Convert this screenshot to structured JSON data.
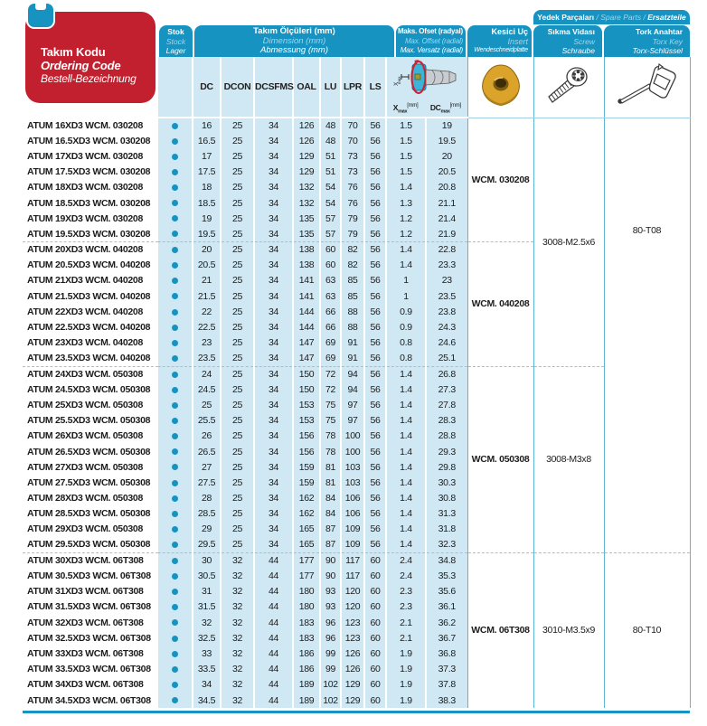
{
  "header": {
    "ordering_code_box": {
      "l1": "Takım Kodu",
      "l2": "Ordering Code",
      "l3": "Bestell-Bezeichnung"
    },
    "spare_parts_band": {
      "l1": "Yedek Parçaları",
      "sep": " / ",
      "l2": "Spare Parts",
      "l3": "Ersatzteile"
    },
    "tabs": {
      "stock": {
        "l1": "Stok",
        "l2": "Stock",
        "l3": "Lager"
      },
      "dimensions": {
        "l1": "Takım Ölçüleri (mm)",
        "l2": "Dimension (mm)",
        "l3": "Abmessung (mm)"
      },
      "offset": {
        "l1": "Maks. Ofset (radyal)",
        "l2": "Max. Offset (radial)",
        "l3": "Max. Versatz (radial)"
      },
      "insert": {
        "l1": "Kesici Uç",
        "l2": "Insert",
        "l3": "Wendeschneidplatte"
      },
      "screw": {
        "l1": "Sıkma Vidası",
        "l2": "Screw",
        "l3": "Schraube"
      },
      "torx": {
        "l1": "Tork Anahtar",
        "l2": "Torx Key",
        "l3": "Torx-Schlüssel"
      }
    },
    "dim_columns": [
      "DC",
      "DCON",
      "DCSFMS",
      "OAL",
      "LU",
      "LPR",
      "LS"
    ],
    "offset_columns": {
      "x": {
        "main": "X",
        "sub": "max",
        "unit": "[mm]"
      },
      "dc": {
        "main": "DC",
        "sub": "max",
        "unit": "[mm]"
      }
    },
    "diagram_label": {
      "main": "X",
      "sub": "max"
    },
    "icons": [
      "clamp-icon",
      "offset-diagram",
      "insert-icon",
      "screw-icon",
      "torx-key-icon",
      "stock-dot"
    ]
  },
  "table": {
    "stock_dot_every_row": true,
    "rows": [
      [
        "ATUM 16XD3 WCM. 030208",
        "16",
        "25",
        "34",
        "126",
        "48",
        "70",
        "56",
        "1.5",
        "19"
      ],
      [
        "ATUM 16.5XD3 WCM. 030208",
        "16.5",
        "25",
        "34",
        "126",
        "48",
        "70",
        "56",
        "1.5",
        "19.5"
      ],
      [
        "ATUM 17XD3 WCM. 030208",
        "17",
        "25",
        "34",
        "129",
        "51",
        "73",
        "56",
        "1.5",
        "20"
      ],
      [
        "ATUM 17.5XD3 WCM. 030208",
        "17.5",
        "25",
        "34",
        "129",
        "51",
        "73",
        "56",
        "1.5",
        "20.5"
      ],
      [
        "ATUM 18XD3 WCM. 030208",
        "18",
        "25",
        "34",
        "132",
        "54",
        "76",
        "56",
        "1.4",
        "20.8"
      ],
      [
        "ATUM 18.5XD3 WCM. 030208",
        "18.5",
        "25",
        "34",
        "132",
        "54",
        "76",
        "56",
        "1.3",
        "21.1"
      ],
      [
        "ATUM 19XD3 WCM. 030208",
        "19",
        "25",
        "34",
        "135",
        "57",
        "79",
        "56",
        "1.2",
        "21.4"
      ],
      [
        "ATUM 19.5XD3 WCM. 030208",
        "19.5",
        "25",
        "34",
        "135",
        "57",
        "79",
        "56",
        "1.2",
        "21.9"
      ],
      [
        "ATUM 20XD3 WCM. 040208",
        "20",
        "25",
        "34",
        "138",
        "60",
        "82",
        "56",
        "1.4",
        "22.8"
      ],
      [
        "ATUM 20.5XD3 WCM. 040208",
        "20.5",
        "25",
        "34",
        "138",
        "60",
        "82",
        "56",
        "1.4",
        "23.3"
      ],
      [
        "ATUM 21XD3 WCM. 040208",
        "21",
        "25",
        "34",
        "141",
        "63",
        "85",
        "56",
        "1",
        "23"
      ],
      [
        "ATUM 21.5XD3 WCM. 040208",
        "21.5",
        "25",
        "34",
        "141",
        "63",
        "85",
        "56",
        "1",
        "23.5"
      ],
      [
        "ATUM 22XD3 WCM. 040208",
        "22",
        "25",
        "34",
        "144",
        "66",
        "88",
        "56",
        "0.9",
        "23.8"
      ],
      [
        "ATUM 22.5XD3 WCM. 040208",
        "22.5",
        "25",
        "34",
        "144",
        "66",
        "88",
        "56",
        "0.9",
        "24.3"
      ],
      [
        "ATUM 23XD3 WCM. 040208",
        "23",
        "25",
        "34",
        "147",
        "69",
        "91",
        "56",
        "0.8",
        "24.6"
      ],
      [
        "ATUM 23.5XD3 WCM. 040208",
        "23.5",
        "25",
        "34",
        "147",
        "69",
        "91",
        "56",
        "0.8",
        "25.1"
      ],
      [
        "ATUM 24XD3 WCM. 050308",
        "24",
        "25",
        "34",
        "150",
        "72",
        "94",
        "56",
        "1.4",
        "26.8"
      ],
      [
        "ATUM 24.5XD3 WCM. 050308",
        "24.5",
        "25",
        "34",
        "150",
        "72",
        "94",
        "56",
        "1.4",
        "27.3"
      ],
      [
        "ATUM 25XD3 WCM. 050308",
        "25",
        "25",
        "34",
        "153",
        "75",
        "97",
        "56",
        "1.4",
        "27.8"
      ],
      [
        "ATUM 25.5XD3 WCM. 050308",
        "25.5",
        "25",
        "34",
        "153",
        "75",
        "97",
        "56",
        "1.4",
        "28.3"
      ],
      [
        "ATUM 26XD3 WCM. 050308",
        "26",
        "25",
        "34",
        "156",
        "78",
        "100",
        "56",
        "1.4",
        "28.8"
      ],
      [
        "ATUM 26.5XD3 WCM. 050308",
        "26.5",
        "25",
        "34",
        "156",
        "78",
        "100",
        "56",
        "1.4",
        "29.3"
      ],
      [
        "ATUM 27XD3 WCM. 050308",
        "27",
        "25",
        "34",
        "159",
        "81",
        "103",
        "56",
        "1.4",
        "29.8"
      ],
      [
        "ATUM 27.5XD3 WCM. 050308",
        "27.5",
        "25",
        "34",
        "159",
        "81",
        "103",
        "56",
        "1.4",
        "30.3"
      ],
      [
        "ATUM 28XD3 WCM. 050308",
        "28",
        "25",
        "34",
        "162",
        "84",
        "106",
        "56",
        "1.4",
        "30.8"
      ],
      [
        "ATUM 28.5XD3 WCM. 050308",
        "28.5",
        "25",
        "34",
        "162",
        "84",
        "106",
        "56",
        "1.4",
        "31.3"
      ],
      [
        "ATUM 29XD3 WCM. 050308",
        "29",
        "25",
        "34",
        "165",
        "87",
        "109",
        "56",
        "1.4",
        "31.8"
      ],
      [
        "ATUM 29.5XD3 WCM. 050308",
        "29.5",
        "25",
        "34",
        "165",
        "87",
        "109",
        "56",
        "1.4",
        "32.3"
      ],
      [
        "ATUM 30XD3 WCM. 06T308",
        "30",
        "32",
        "44",
        "177",
        "90",
        "117",
        "60",
        "2.4",
        "34.8"
      ],
      [
        "ATUM 30.5XD3 WCM. 06T308",
        "30.5",
        "32",
        "44",
        "177",
        "90",
        "117",
        "60",
        "2.4",
        "35.3"
      ],
      [
        "ATUM 31XD3 WCM. 06T308",
        "31",
        "32",
        "44",
        "180",
        "93",
        "120",
        "60",
        "2.3",
        "35.6"
      ],
      [
        "ATUM 31.5XD3 WCM. 06T308",
        "31.5",
        "32",
        "44",
        "180",
        "93",
        "120",
        "60",
        "2.3",
        "36.1"
      ],
      [
        "ATUM 32XD3 WCM. 06T308",
        "32",
        "32",
        "44",
        "183",
        "96",
        "123",
        "60",
        "2.1",
        "36.2"
      ],
      [
        "ATUM 32.5XD3 WCM. 06T308",
        "32.5",
        "32",
        "44",
        "183",
        "96",
        "123",
        "60",
        "2.1",
        "36.7"
      ],
      [
        "ATUM 33XD3 WCM. 06T308",
        "33",
        "32",
        "44",
        "186",
        "99",
        "126",
        "60",
        "1.9",
        "36.8"
      ],
      [
        "ATUM 33.5XD3 WCM. 06T308",
        "33.5",
        "32",
        "44",
        "186",
        "99",
        "126",
        "60",
        "1.9",
        "37.3"
      ],
      [
        "ATUM 34XD3 WCM. 06T308",
        "34",
        "32",
        "44",
        "189",
        "102",
        "129",
        "60",
        "1.9",
        "37.8"
      ],
      [
        "ATUM 34.5XD3 WCM. 06T308",
        "34.5",
        "32",
        "44",
        "189",
        "102",
        "129",
        "60",
        "1.9",
        "38.3"
      ]
    ],
    "insert_groups": [
      {
        "label": "WCM. 030208",
        "rows": 8
      },
      {
        "label": "WCM. 040208",
        "rows": 8
      },
      {
        "label": "WCM. 050308",
        "rows": 12
      },
      {
        "label": "WCM. 06T308",
        "rows": 10
      }
    ],
    "screw_groups": [
      {
        "label": "3008-M2.5x6",
        "rows": 16
      },
      {
        "label": "3008-M3x8",
        "rows": 12
      },
      {
        "label": "3010-M3.5x9",
        "rows": 10
      }
    ],
    "torx_groups": [
      {
        "label": "80-T08",
        "rows": 28
      },
      {
        "label": "80-T10",
        "rows": 10
      }
    ]
  },
  "colors": {
    "teal": "#1793c2",
    "red": "#c2202f",
    "light_blue": "#cfe8f4",
    "dashed_line": "#8ec9e2",
    "cell_border": "#5fb6d8",
    "insert_gold": "#dca32b",
    "text": "#1c1c1c"
  }
}
